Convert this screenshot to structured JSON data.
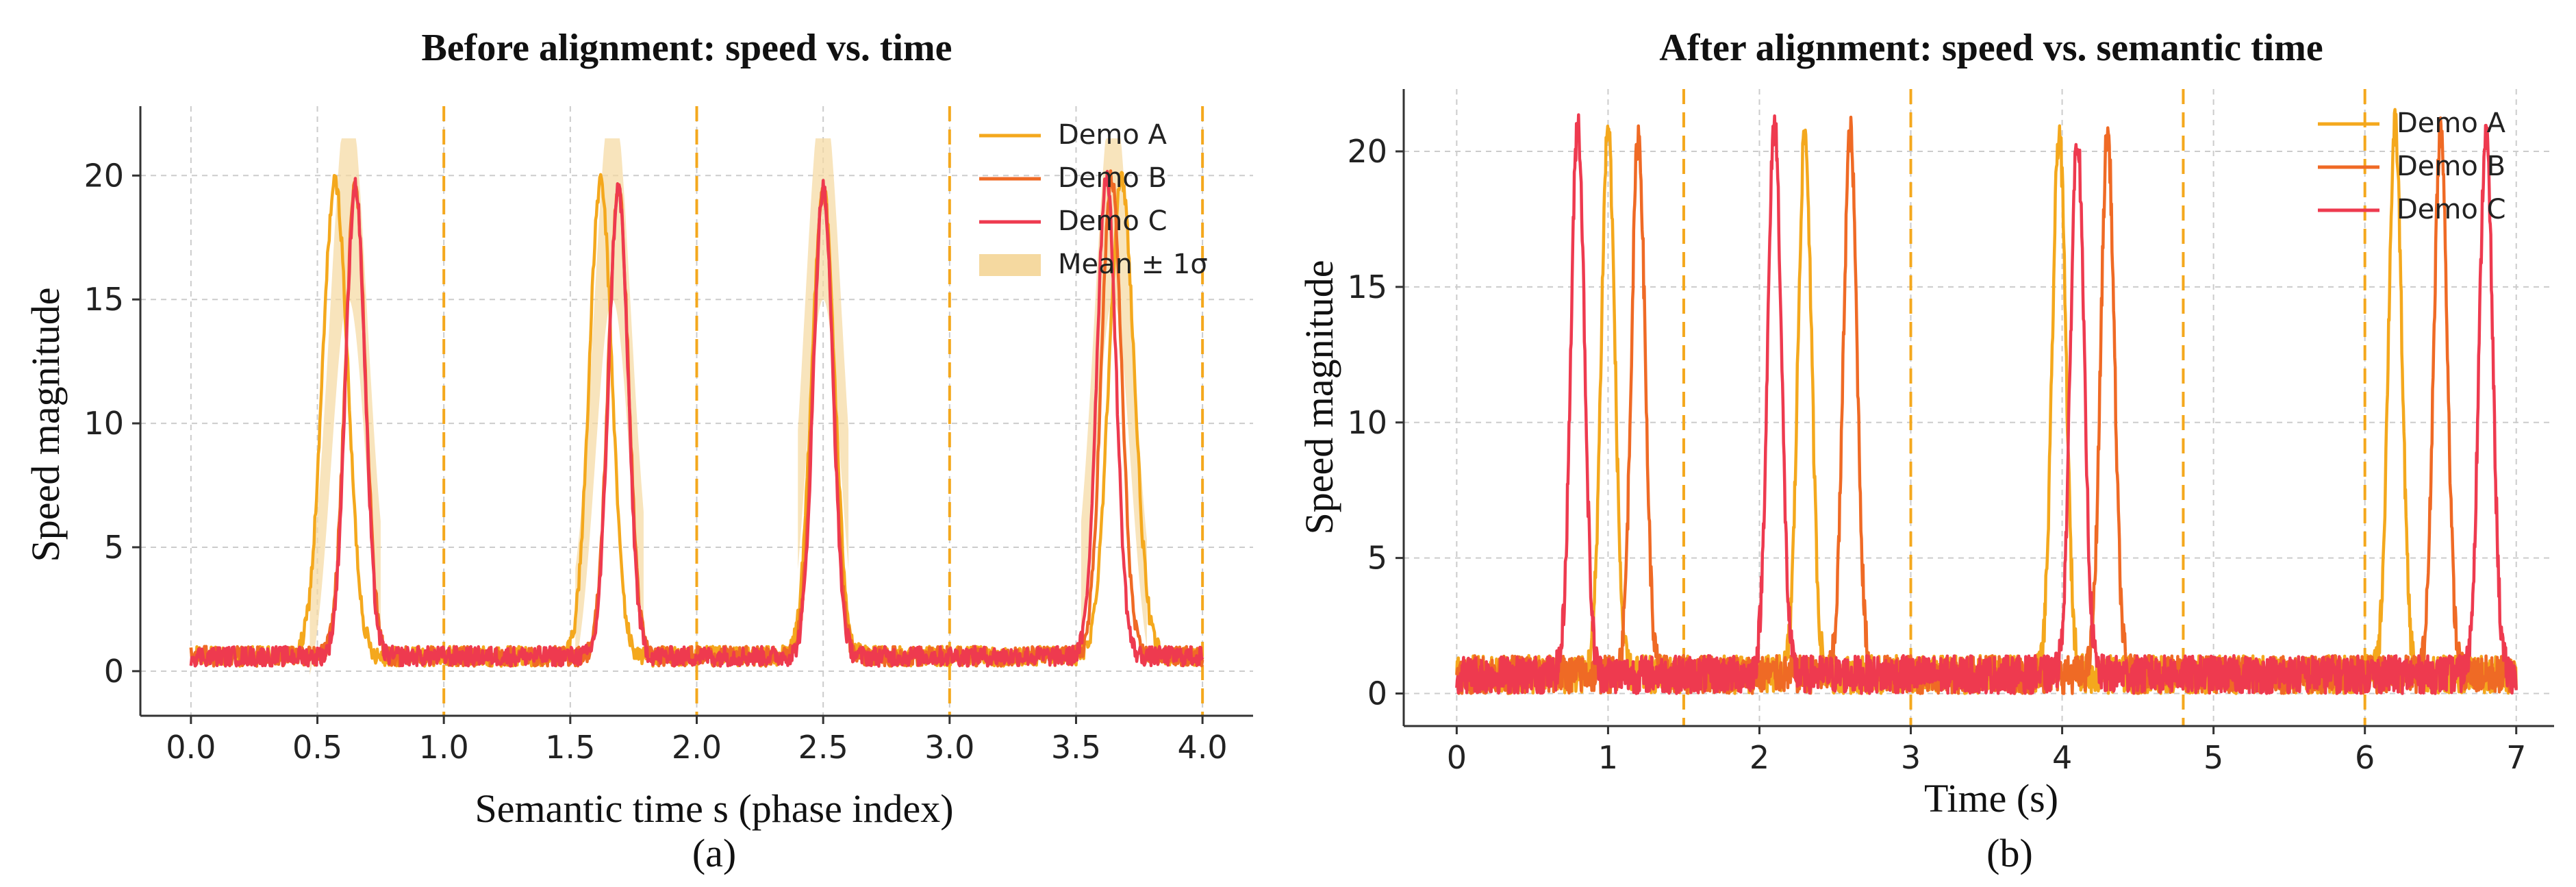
{
  "chart_data": [
    {
      "type": "line",
      "title": "Before alignment: speed vs. time",
      "xlabel": "Semantic time s (phase index)",
      "ylabel": "Speed magnitude",
      "caption": "(a)",
      "xlim": [
        -0.2,
        4.2
      ],
      "ylim": [
        -1.8,
        22.8
      ],
      "xticks": [
        "0.0",
        "0.5",
        "1.0",
        "1.5",
        "2.0",
        "2.5",
        "3.0",
        "3.5",
        "4.0"
      ],
      "yticks": [
        "0",
        "5",
        "10",
        "15",
        "20"
      ],
      "grid": true,
      "legend_position": "top-right",
      "phase_boundaries": [
        1.0,
        2.0,
        3.0,
        4.0
      ],
      "baseline_speed": 0.6,
      "band": {
        "name": "Mean ± 1σ",
        "color": "#F5D9A0"
      },
      "series": [
        {
          "name": "Demo A",
          "color": "#F4A81D",
          "x_range": [
            0,
            4
          ],
          "peaks": [
            {
              "x": 0.57,
              "y": 19.7,
              "width": 0.05
            },
            {
              "x": 1.62,
              "y": 19.7,
              "width": 0.045
            },
            {
              "x": 2.5,
              "y": 19.5,
              "width": 0.045
            },
            {
              "x": 3.68,
              "y": 19.8,
              "width": 0.05
            }
          ]
        },
        {
          "name": "Demo B",
          "color": "#EF6A25",
          "x_range": [
            0,
            4
          ],
          "peaks": [
            {
              "x": 0.65,
              "y": 19.6,
              "width": 0.04
            },
            {
              "x": 1.69,
              "y": 19.5,
              "width": 0.04
            },
            {
              "x": 2.5,
              "y": 19.5,
              "width": 0.04
            },
            {
              "x": 3.64,
              "y": 19.9,
              "width": 0.04
            }
          ]
        },
        {
          "name": "Demo C",
          "color": "#EE3A4F",
          "x_range": [
            0,
            4
          ],
          "peaks": [
            {
              "x": 0.65,
              "y": 19.6,
              "width": 0.038
            },
            {
              "x": 1.69,
              "y": 19.5,
              "width": 0.038
            },
            {
              "x": 2.5,
              "y": 19.5,
              "width": 0.038
            },
            {
              "x": 3.62,
              "y": 20.0,
              "width": 0.038
            }
          ]
        }
      ]
    },
    {
      "type": "line",
      "title": "After alignment: speed vs. semantic time",
      "xlabel": "Time (s)",
      "ylabel": "Speed magnitude",
      "caption": "(b)",
      "xlim": [
        -0.35,
        7.25
      ],
      "ylim": [
        -1.2,
        22.3
      ],
      "xticks": [
        "0",
        "1",
        "2",
        "3",
        "4",
        "5",
        "6",
        "7"
      ],
      "yticks": [
        "0",
        "5",
        "10",
        "15",
        "20"
      ],
      "grid": true,
      "legend_position": "top-right",
      "phase_boundaries": [
        1.5,
        3.0,
        4.8,
        6.0
      ],
      "baseline_speed": 0.7,
      "series": [
        {
          "name": "Demo A",
          "color": "#F4A81D",
          "x_range": [
            0,
            7
          ],
          "peaks": [
            {
              "x": 1.0,
              "y": 20.9,
              "width": 0.045
            },
            {
              "x": 2.3,
              "y": 20.6,
              "width": 0.045
            },
            {
              "x": 3.98,
              "y": 20.7,
              "width": 0.045
            },
            {
              "x": 6.2,
              "y": 20.9,
              "width": 0.045
            }
          ]
        },
        {
          "name": "Demo B",
          "color": "#EF6A25",
          "x_range": [
            0,
            7
          ],
          "peaks": [
            {
              "x": 1.2,
              "y": 20.6,
              "width": 0.045
            },
            {
              "x": 2.6,
              "y": 20.7,
              "width": 0.045
            },
            {
              "x": 4.3,
              "y": 20.7,
              "width": 0.045
            },
            {
              "x": 6.5,
              "y": 20.8,
              "width": 0.045
            }
          ]
        },
        {
          "name": "Demo C",
          "color": "#EE3A4F",
          "x_range": [
            0,
            7
          ],
          "peaks": [
            {
              "x": 0.8,
              "y": 21.1,
              "width": 0.045
            },
            {
              "x": 2.1,
              "y": 21.1,
              "width": 0.045
            },
            {
              "x": 4.1,
              "y": 20.6,
              "width": 0.045
            },
            {
              "x": 6.8,
              "y": 20.7,
              "width": 0.045
            }
          ]
        }
      ]
    }
  ]
}
